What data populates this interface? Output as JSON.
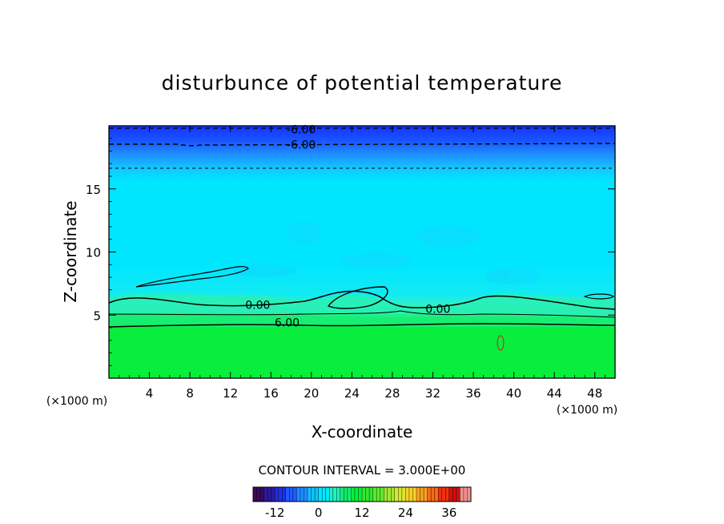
{
  "chart_data": {
    "type": "heatmap",
    "title": "disturbunce of potential temperature",
    "xlabel": "X-coordinate",
    "ylabel": "Z-coordinate",
    "x_unit_left": "(×1000 m)",
    "x_unit_right": "(×1000 m)",
    "xlim": [
      0,
      50
    ],
    "ylim": [
      0,
      20
    ],
    "xticks": [
      4,
      8,
      12,
      16,
      20,
      24,
      28,
      32,
      36,
      40,
      44,
      48
    ],
    "xtick_labels": [
      "4",
      "8",
      "12",
      "16",
      "20",
      "24",
      "28",
      "32",
      "36",
      "40",
      "44",
      "48"
    ],
    "yticks": [
      5,
      10,
      15
    ],
    "ytick_labels": [
      "5",
      "10",
      "15"
    ],
    "contour_labels": [
      {
        "text": "-6.00",
        "x": 19,
        "y": 19.7
      },
      {
        "text": "-6.00",
        "x": 19,
        "y": 18.5
      },
      {
        "text": "0.00",
        "x": 14.7,
        "y": 5.8
      },
      {
        "text": "0.00",
        "x": 32.5,
        "y": 5.5
      },
      {
        "text": "6.00",
        "x": 17.6,
        "y": 4.4
      }
    ],
    "contour_interval_text": "CONTOUR INTERVAL = 3.000E+00",
    "colorbar": {
      "min": -18,
      "max": 42,
      "ticks": [
        -12,
        0,
        12,
        24,
        36
      ],
      "tick_labels": [
        "-12",
        "0",
        "12",
        "24",
        "36"
      ]
    },
    "colors": {
      "deep_blue": "#1a3cff",
      "blue": "#1f7dff",
      "cyan": "#00e6ff",
      "light_cyan": "#33f0ee",
      "teal": "#1ef0b8",
      "green": "#0aee40"
    }
  }
}
